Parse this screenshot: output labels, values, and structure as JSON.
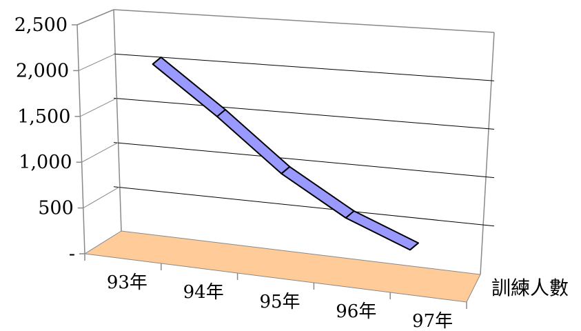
{
  "chart_data": {
    "type": "line",
    "three_d": true,
    "categories": [
      "93年",
      "94年",
      "95年",
      "96年",
      "97年"
    ],
    "series": [
      {
        "name": "訓練人數",
        "values": [
          2050,
          1530,
          970,
          560,
          290
        ]
      }
    ],
    "ylim": [
      0,
      2500
    ],
    "yticks": [
      0,
      500,
      1000,
      1500,
      2000,
      2500
    ],
    "ytick_labels": [
      "-",
      "500",
      "1,000",
      "1,500",
      "2,000",
      "2,500"
    ],
    "grid": true,
    "legend": "right",
    "colors": {
      "ribbon": "#9999ff",
      "floor": "#ffcc99",
      "grid": "#000000",
      "walls": "#888888"
    }
  }
}
